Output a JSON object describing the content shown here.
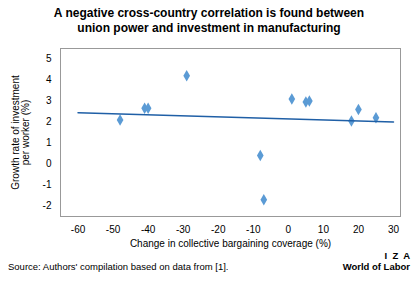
{
  "chart_data": {
    "type": "scatter",
    "title": "A negative cross-country correlation is found between\nunion power and investment in manufacturing",
    "xlabel": "Change in collective bargaining coverage (%)",
    "ylabel": "Growth rate of investment\nper worker (%)",
    "series": [
      {
        "type": "scatter",
        "marker": "diamond",
        "color": "#5b9bd5",
        "x": [
          -48,
          -41,
          -40,
          -29,
          -8,
          -7,
          1,
          5,
          6,
          18,
          20,
          25
        ],
        "values": [
          2.1,
          2.65,
          2.65,
          4.2,
          0.4,
          -1.7,
          3.1,
          2.95,
          3.0,
          2.05,
          2.6,
          2.2
        ]
      },
      {
        "type": "line",
        "line_style": "solid",
        "color": "#1f5fa6",
        "x": [
          -60,
          30
        ],
        "values": [
          2.4358663,
          1.9973847
        ]
      }
    ],
    "xlim": [
      -65,
      32
    ],
    "ylim": [
      -2.5,
      5.5
    ],
    "xticks": [
      -60,
      -50,
      -40,
      -30,
      -20,
      -10,
      0,
      10,
      20,
      30
    ],
    "yticks": [
      -2,
      -1,
      0,
      1,
      2,
      3,
      4,
      5
    ],
    "grid": false,
    "annotations": [
      "Source: Authors' compilation based on data from [1].",
      "I  Z  A",
      "World of Labor"
    ]
  }
}
